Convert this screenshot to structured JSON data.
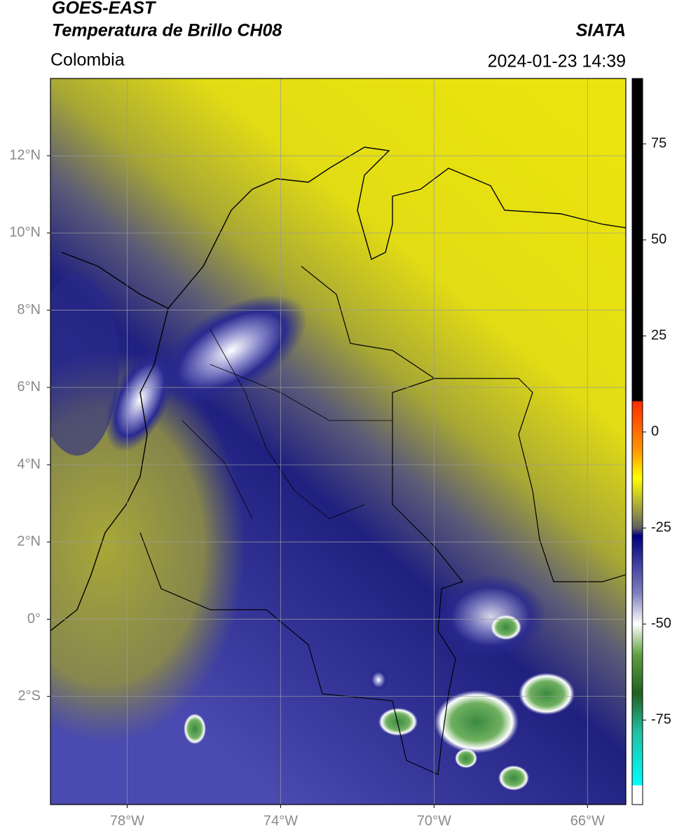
{
  "header": {
    "title": "GOES-EAST",
    "subtitle": "Temperatura de Brillo CH08",
    "source": "SIATA",
    "region": "Colombia",
    "datetime": "2024-01-23 14:39"
  },
  "map": {
    "xlim": [
      -80,
      -65
    ],
    "ylim": [
      -4.8,
      14
    ],
    "xticks": [
      {
        "value": -78,
        "label": "78°W"
      },
      {
        "value": -74,
        "label": "74°W"
      },
      {
        "value": -70,
        "label": "70°W"
      },
      {
        "value": -66,
        "label": "66°W"
      }
    ],
    "yticks": [
      {
        "value": 12,
        "label": "12°N"
      },
      {
        "value": 10,
        "label": "10°N"
      },
      {
        "value": 8,
        "label": "8°N"
      },
      {
        "value": 6,
        "label": "6°N"
      },
      {
        "value": 4,
        "label": "4°N"
      },
      {
        "value": 2,
        "label": "2°N"
      },
      {
        "value": 0,
        "label": "0°"
      },
      {
        "value": -2,
        "label": "2°S"
      }
    ],
    "grid": true,
    "grid_color": "#9a9a9a"
  },
  "colorbar": {
    "clim": [
      -97,
      92
    ],
    "ticks": [
      75,
      50,
      25,
      0,
      -25,
      -50,
      -75
    ],
    "colormap": [
      {
        "value": 92,
        "color": "#000000"
      },
      {
        "value": 8,
        "color": "#000000"
      },
      {
        "value": 8,
        "color": "#ff2a00"
      },
      {
        "value": -5,
        "color": "#ff9900"
      },
      {
        "value": -12,
        "color": "#ffff00"
      },
      {
        "value": -20,
        "color": "#a0a040"
      },
      {
        "value": -25,
        "color": "#606060"
      },
      {
        "value": -27,
        "color": "#000080"
      },
      {
        "value": -42,
        "color": "#8080c0"
      },
      {
        "value": -50,
        "color": "#ffffff"
      },
      {
        "value": -58,
        "color": "#60a040"
      },
      {
        "value": -68,
        "color": "#206020"
      },
      {
        "value": -78,
        "color": "#20c0a0"
      },
      {
        "value": -92,
        "color": "#00ffff"
      },
      {
        "value": -92,
        "color": "#ffffff"
      },
      {
        "value": -97,
        "color": "#ffffff"
      }
    ]
  }
}
